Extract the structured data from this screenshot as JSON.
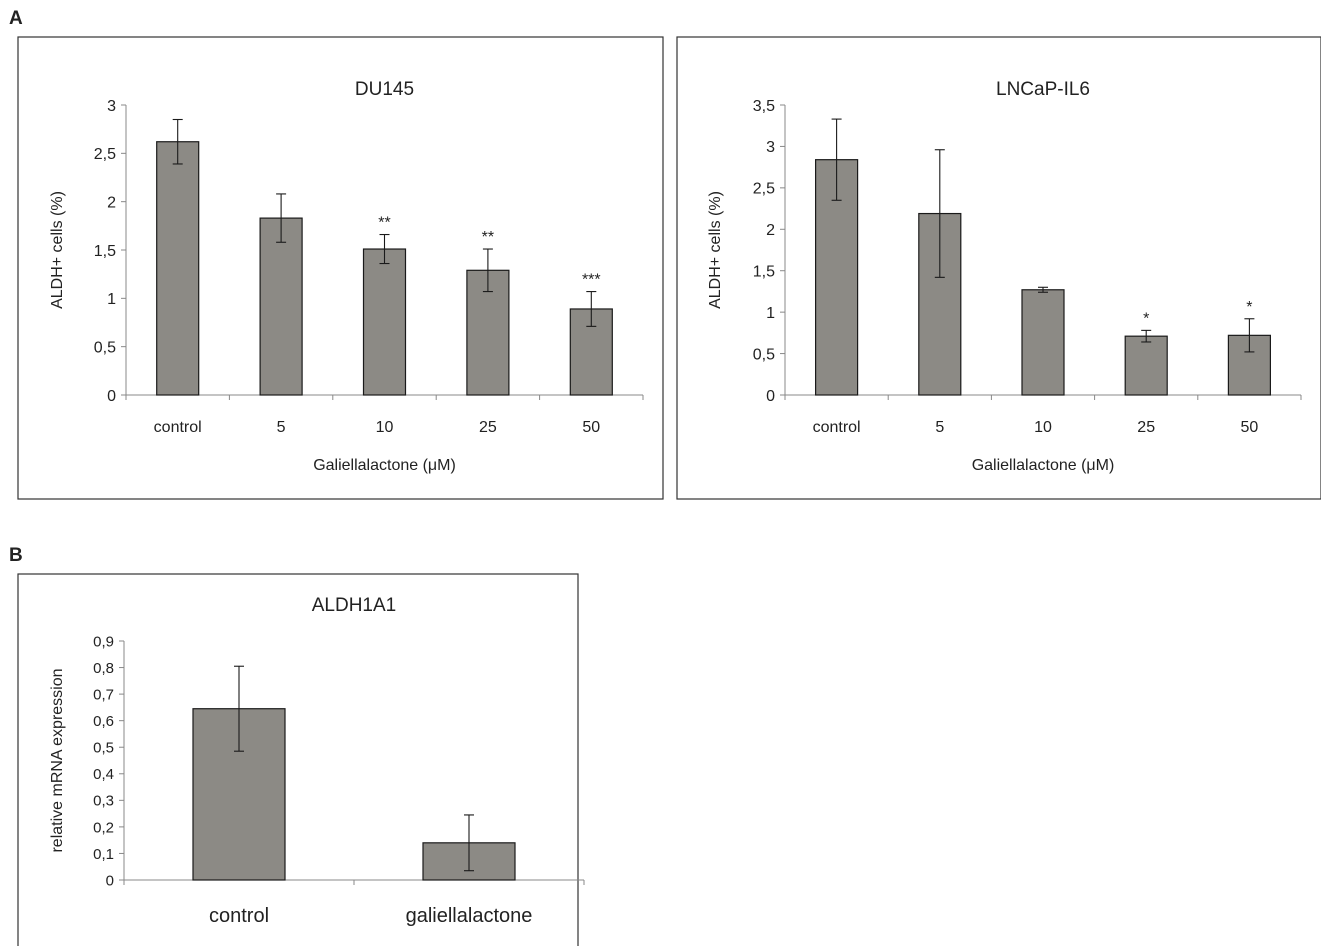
{
  "panel_labels": [
    "A",
    "B"
  ],
  "chart_data": [
    {
      "type": "bar",
      "title": "DU145",
      "xlabel": "Galiellalactone (μM)",
      "ylabel": "ALDH+ cells (%)",
      "categories": [
        "control",
        "5",
        "10",
        "25",
        "50"
      ],
      "values": [
        2.62,
        1.83,
        1.51,
        1.29,
        0.89
      ],
      "errors": [
        0.23,
        0.25,
        0.15,
        0.22,
        0.18
      ],
      "significance": [
        "",
        "",
        "**",
        "**",
        "***"
      ],
      "ylim": [
        0,
        3
      ],
      "yticks": [
        "0",
        "0,5",
        "1",
        "1,5",
        "2",
        "2,5",
        "3"
      ],
      "bar_color": "#8c8a85",
      "grid": false,
      "legend": "none"
    },
    {
      "type": "bar",
      "title": "LNCaP-IL6",
      "xlabel": "Galiellalactone (μM)",
      "ylabel": "ALDH+ cells (%)",
      "categories": [
        "control",
        "5",
        "10",
        "25",
        "50"
      ],
      "values": [
        2.84,
        2.19,
        1.27,
        0.71,
        0.72
      ],
      "errors": [
        0.49,
        0.77,
        0.03,
        0.07,
        0.2
      ],
      "significance": [
        "",
        "",
        "",
        "*",
        "*"
      ],
      "ylim": [
        0,
        3.5
      ],
      "yticks": [
        "0",
        "0,5",
        "1",
        "1,5",
        "2",
        "2,5",
        "3",
        "3,5"
      ],
      "bar_color": "#8c8a85",
      "grid": false,
      "legend": "none"
    },
    {
      "type": "bar",
      "title": "ALDH1A1",
      "xlabel": "",
      "ylabel": "relative mRNA expression",
      "categories": [
        "control",
        "galiellalactone"
      ],
      "values": [
        0.645,
        0.14
      ],
      "errors": [
        0.16,
        0.105
      ],
      "significance": [
        "",
        ""
      ],
      "ylim": [
        0,
        0.9
      ],
      "yticks": [
        "0",
        "0,1",
        "0,2",
        "0,3",
        "0,4",
        "0,5",
        "0,6",
        "0,7",
        "0,8",
        "0,9"
      ],
      "bar_color": "#8c8a85",
      "grid": false,
      "legend": "none"
    }
  ]
}
